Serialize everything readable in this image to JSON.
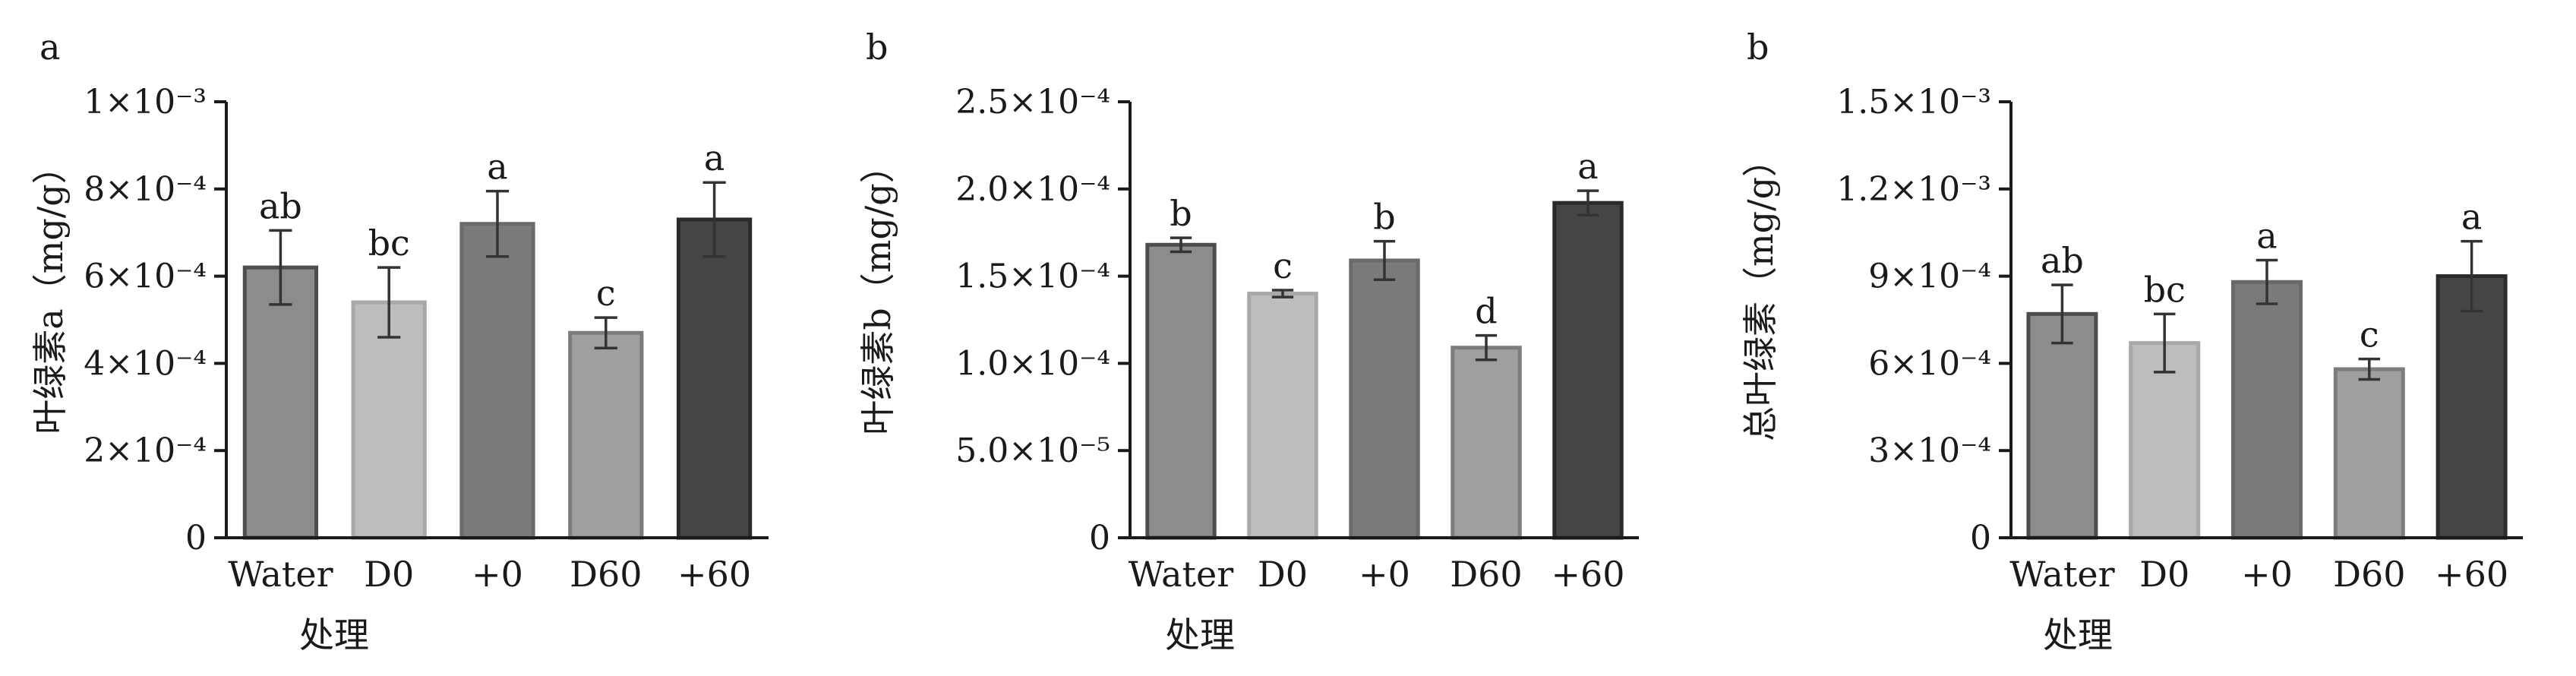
{
  "chart_data": [
    {
      "type": "bar",
      "panel_letter": "a",
      "categories": [
        "Water",
        "D0",
        "+0",
        "D60",
        "+60"
      ],
      "values": [
        0.00062,
        0.00054,
        0.00072,
        0.00047,
        0.00073
      ],
      "errors": [
        8.5e-05,
        8e-05,
        7.5e-05,
        3.5e-05,
        8.5e-05
      ],
      "sig_letters": [
        "ab",
        "bc",
        "a",
        "c",
        "a"
      ],
      "bar_colors": [
        "#8c8c8c",
        "#bdbdbd",
        "#7a7a7a",
        "#9f9f9f",
        "#454545"
      ],
      "bar_edge_colors": [
        "#4d4d4d",
        "#a8a8a8",
        "#6a6a6a",
        "#7c7c7c",
        "#2a2a2a"
      ],
      "ylim": [
        0,
        0.001
      ],
      "yticks": [
        {
          "value": 0,
          "label": "0"
        },
        {
          "value": 0.0002,
          "label": "2×10⁻⁴"
        },
        {
          "value": 0.0004,
          "label": "4×10⁻⁴"
        },
        {
          "value": 0.0006,
          "label": "6×10⁻⁴"
        },
        {
          "value": 0.0008,
          "label": "8×10⁻⁴"
        },
        {
          "value": 0.001,
          "label": "1×10⁻³"
        }
      ],
      "xlabel": "处理",
      "ylabel": "叶绿素a（mg/g）"
    },
    {
      "type": "bar",
      "panel_letter": "b",
      "categories": [
        "Water",
        "D0",
        "+0",
        "D60",
        "+60"
      ],
      "values": [
        0.000168,
        0.00014,
        0.000159,
        0.000109,
        0.000192
      ],
      "errors": [
        4e-06,
        2e-06,
        1.1e-05,
        7e-06,
        7e-06
      ],
      "sig_letters": [
        "b",
        "c",
        "b",
        "d",
        "a"
      ],
      "bar_colors": [
        "#8c8c8c",
        "#bdbdbd",
        "#7a7a7a",
        "#9f9f9f",
        "#454545"
      ],
      "bar_edge_colors": [
        "#4d4d4d",
        "#a8a8a8",
        "#6a6a6a",
        "#7c7c7c",
        "#2a2a2a"
      ],
      "ylim": [
        0,
        0.00025
      ],
      "yticks": [
        {
          "value": 0,
          "label": "0"
        },
        {
          "value": 5e-05,
          "label": "5.0×10⁻⁵"
        },
        {
          "value": 0.0001,
          "label": "1.0×10⁻⁴"
        },
        {
          "value": 0.00015,
          "label": "1.5×10⁻⁴"
        },
        {
          "value": 0.0002,
          "label": "2.0×10⁻⁴"
        },
        {
          "value": 0.00025,
          "label": "2.5×10⁻⁴"
        }
      ],
      "xlabel": "处理",
      "ylabel": "叶绿素b（mg/g）"
    },
    {
      "type": "bar",
      "panel_letter": "b",
      "categories": [
        "Water",
        "D0",
        "+0",
        "D60",
        "+60"
      ],
      "values": [
        0.00077,
        0.00067,
        0.00088,
        0.00058,
        0.0009
      ],
      "errors": [
        0.0001,
        0.0001,
        7.5e-05,
        3.5e-05,
        0.00012
      ],
      "sig_letters": [
        "ab",
        "bc",
        "a",
        "c",
        "a"
      ],
      "bar_colors": [
        "#8c8c8c",
        "#bdbdbd",
        "#7a7a7a",
        "#9f9f9f",
        "#454545"
      ],
      "bar_edge_colors": [
        "#4d4d4d",
        "#a8a8a8",
        "#6a6a6a",
        "#7c7c7c",
        "#2a2a2a"
      ],
      "ylim": [
        0,
        0.0015
      ],
      "yticks": [
        {
          "value": 0,
          "label": "0"
        },
        {
          "value": 0.0003,
          "label": "3×10⁻⁴"
        },
        {
          "value": 0.0006,
          "label": "6×10⁻⁴"
        },
        {
          "value": 0.0009,
          "label": "9×10⁻⁴"
        },
        {
          "value": 0.0012,
          "label": "1.2×10⁻³"
        },
        {
          "value": 0.0015,
          "label": "1.5×10⁻³"
        }
      ],
      "xlabel": "处理",
      "ylabel": "总叶绿素（mg/g）"
    }
  ]
}
